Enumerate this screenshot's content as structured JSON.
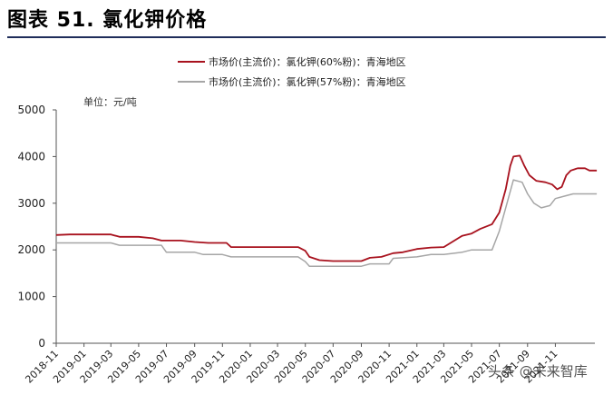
{
  "figure_title": "图表 51. 氯化钾价格",
  "watermark": "头条 @未来智库",
  "chart_data": {
    "type": "line",
    "title": "",
    "xlabel": "",
    "ylabel": "",
    "unit_label": "单位：元/吨",
    "ylim": [
      0,
      5000
    ],
    "yticks": [
      0,
      1000,
      2000,
      3000,
      4000,
      5000
    ],
    "x_range": [
      "2018-11",
      "2021-12"
    ],
    "xticks": [
      "2018-11",
      "2019-01",
      "2019-03",
      "2019-05",
      "2019-07",
      "2019-09",
      "2019-11",
      "2020-01",
      "2020-03",
      "2020-05",
      "2020-07",
      "2020-09",
      "2020-11",
      "2021-01",
      "2021-03",
      "2021-05",
      "2021-07",
      "2021-09",
      "2021-11"
    ],
    "grid": false,
    "legend_position": "top",
    "colors": {
      "kcl60": "#a8121e",
      "kcl57": "#a6a6a6",
      "axis": "#555555"
    },
    "series": [
      {
        "name": "市场价(主流价)：氯化钾(60%粉)：青海地区",
        "color": "#a8121e",
        "points": [
          [
            "2018-11-01",
            2320
          ],
          [
            "2018-12-01",
            2330
          ],
          [
            "2019-01-01",
            2330
          ],
          [
            "2019-02-01",
            2330
          ],
          [
            "2019-03-01",
            2330
          ],
          [
            "2019-03-20",
            2280
          ],
          [
            "2019-05-01",
            2280
          ],
          [
            "2019-06-01",
            2250
          ],
          [
            "2019-06-20",
            2200
          ],
          [
            "2019-08-01",
            2200
          ],
          [
            "2019-09-01",
            2170
          ],
          [
            "2019-10-01",
            2150
          ],
          [
            "2019-11-10",
            2150
          ],
          [
            "2019-11-20",
            2060
          ],
          [
            "2020-01-01",
            2060
          ],
          [
            "2020-03-01",
            2060
          ],
          [
            "2020-04-15",
            2060
          ],
          [
            "2020-05-01",
            1980
          ],
          [
            "2020-05-10",
            1850
          ],
          [
            "2020-06-01",
            1780
          ],
          [
            "2020-07-01",
            1760
          ],
          [
            "2020-08-01",
            1760
          ],
          [
            "2020-09-01",
            1760
          ],
          [
            "2020-09-20",
            1830
          ],
          [
            "2020-10-15",
            1850
          ],
          [
            "2020-11-10",
            1930
          ],
          [
            "2020-12-01",
            1950
          ],
          [
            "2021-01-01",
            2020
          ],
          [
            "2021-02-01",
            2050
          ],
          [
            "2021-03-01",
            2060
          ],
          [
            "2021-04-10",
            2300
          ],
          [
            "2021-05-01",
            2350
          ],
          [
            "2021-05-20",
            2450
          ],
          [
            "2021-06-15",
            2550
          ],
          [
            "2021-07-01",
            2800
          ],
          [
            "2021-07-15",
            3300
          ],
          [
            "2021-07-25",
            3800
          ],
          [
            "2021-08-01",
            4000
          ],
          [
            "2021-08-15",
            4020
          ],
          [
            "2021-08-25",
            3800
          ],
          [
            "2021-09-05",
            3600
          ],
          [
            "2021-09-20",
            3480
          ],
          [
            "2021-10-10",
            3450
          ],
          [
            "2021-10-25",
            3400
          ],
          [
            "2021-11-05",
            3300
          ],
          [
            "2021-11-15",
            3350
          ],
          [
            "2021-11-25",
            3600
          ],
          [
            "2021-12-05",
            3700
          ],
          [
            "2021-12-20",
            3750
          ],
          [
            "2022-01-05",
            3750
          ],
          [
            "2022-01-15",
            3700
          ],
          [
            "2022-01-31",
            3700
          ]
        ]
      },
      {
        "name": "市场价(主流价)：氯化钾(57%粉)：青海地区",
        "color": "#a6a6a6",
        "points": [
          [
            "2018-11-01",
            2150
          ],
          [
            "2019-01-01",
            2150
          ],
          [
            "2019-03-01",
            2150
          ],
          [
            "2019-03-20",
            2100
          ],
          [
            "2019-05-01",
            2100
          ],
          [
            "2019-06-20",
            2100
          ],
          [
            "2019-07-01",
            1950
          ],
          [
            "2019-09-01",
            1950
          ],
          [
            "2019-09-20",
            1900
          ],
          [
            "2019-11-01",
            1900
          ],
          [
            "2019-11-20",
            1850
          ],
          [
            "2020-01-01",
            1850
          ],
          [
            "2020-03-01",
            1850
          ],
          [
            "2020-04-15",
            1850
          ],
          [
            "2020-05-01",
            1750
          ],
          [
            "2020-05-10",
            1650
          ],
          [
            "2020-07-01",
            1650
          ],
          [
            "2020-09-01",
            1650
          ],
          [
            "2020-09-20",
            1700
          ],
          [
            "2020-11-01",
            1700
          ],
          [
            "2020-11-10",
            1820
          ],
          [
            "2021-01-01",
            1850
          ],
          [
            "2021-02-01",
            1900
          ],
          [
            "2021-03-01",
            1900
          ],
          [
            "2021-04-10",
            1950
          ],
          [
            "2021-05-01",
            2000
          ],
          [
            "2021-06-15",
            2000
          ],
          [
            "2021-07-01",
            2400
          ],
          [
            "2021-07-15",
            2900
          ],
          [
            "2021-08-01",
            3500
          ],
          [
            "2021-08-20",
            3450
          ],
          [
            "2021-09-01",
            3200
          ],
          [
            "2021-09-15",
            3000
          ],
          [
            "2021-10-01",
            2900
          ],
          [
            "2021-10-20",
            2950
          ],
          [
            "2021-11-01",
            3100
          ],
          [
            "2021-11-20",
            3150
          ],
          [
            "2021-12-10",
            3200
          ],
          [
            "2022-01-31",
            3200
          ]
        ]
      }
    ]
  }
}
